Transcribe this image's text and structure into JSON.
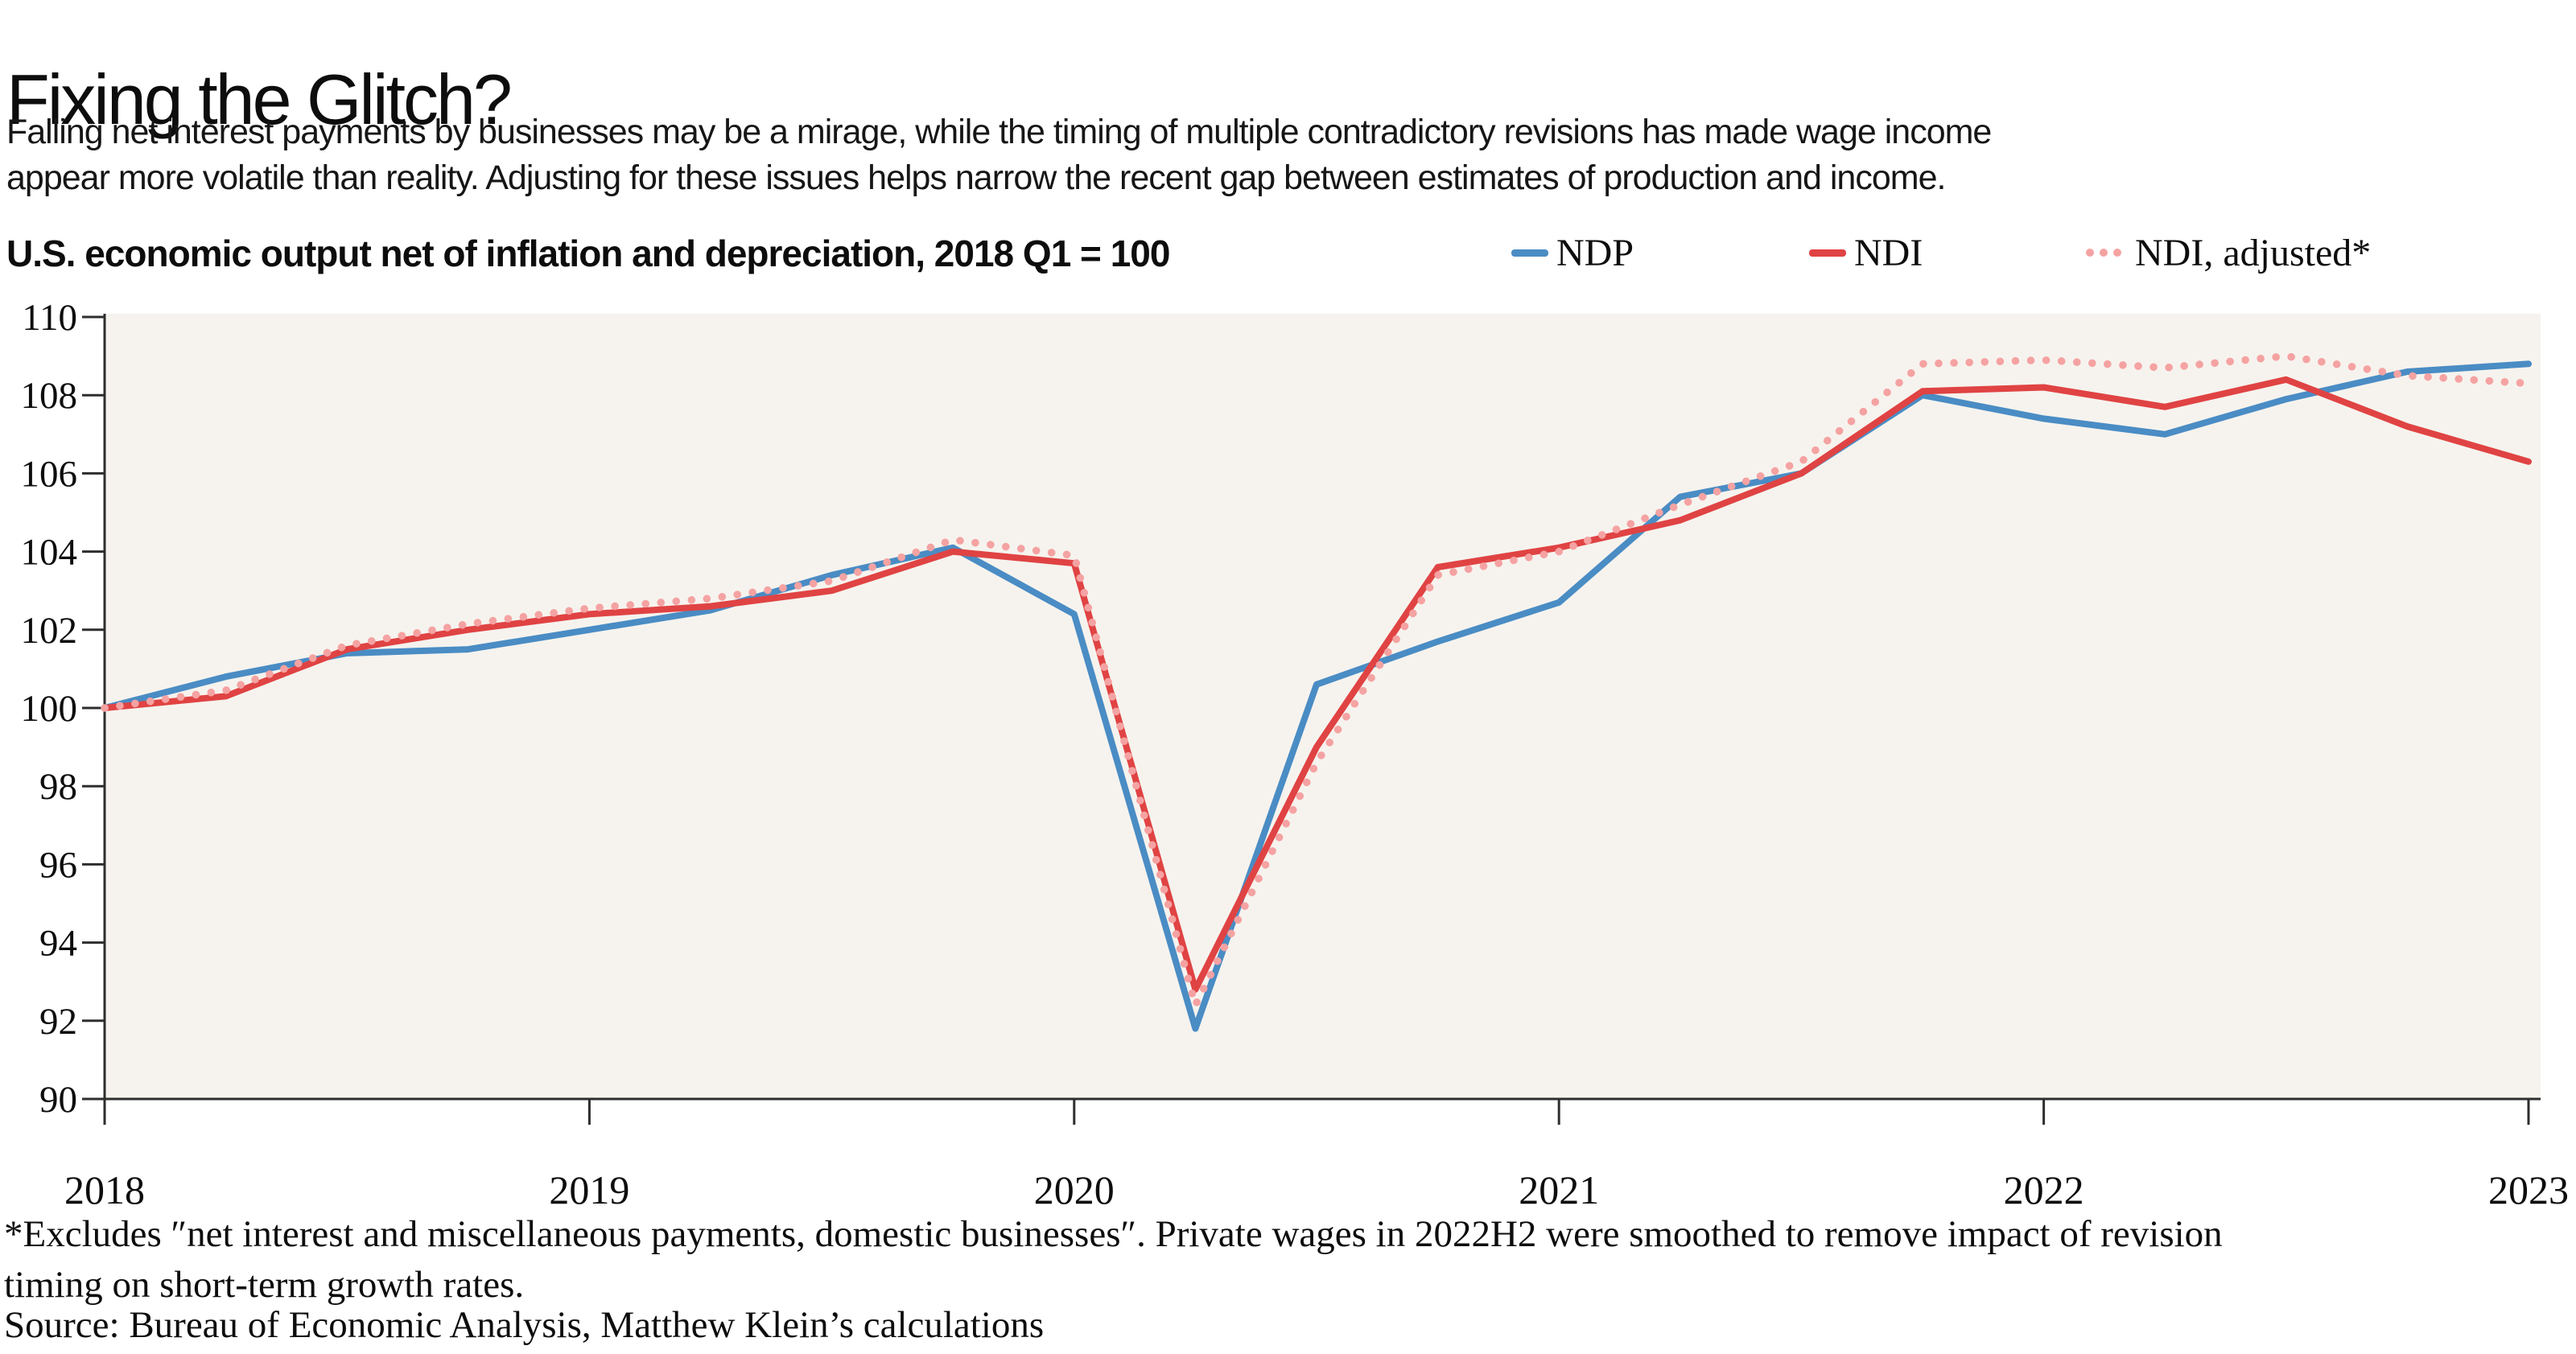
{
  "header": {
    "title": "Fixing the Glitch?",
    "subtitle_lines": [
      "Falling net interest payments by businesses may be a mirage, while the timing of multiple contradictory revisions has made wage income",
      "appear more volatile than reality. Adjusting for these issues helps narrow the recent gap between estimates of production and income."
    ]
  },
  "footer": {
    "footnote_lines": [
      "*Excludes ″net interest and miscellaneous payments, domestic businesses″. Private wages in 2022H2 were smoothed to remove impact of revision",
      "timing on short-term growth rates."
    ],
    "source": "Source: Bureau of Economic Analysis, Matthew Klein’s calculations"
  },
  "chart_data": {
    "type": "line",
    "title": "U.S. economic output net of inflation and depreciation, 2018 Q1 = 100",
    "categories": [
      "2018 Q1",
      "2018 Q2",
      "2018 Q3",
      "2018 Q4",
      "2019 Q1",
      "2019 Q2",
      "2019 Q3",
      "2019 Q4",
      "2020 Q1",
      "2020 Q2",
      "2020 Q3",
      "2020 Q4",
      "2021 Q1",
      "2021 Q2",
      "2021 Q3",
      "2021 Q4",
      "2022 Q1",
      "2022 Q2",
      "2022 Q3",
      "2022 Q4",
      "2023 Q1"
    ],
    "series": [
      {
        "name": "NDP",
        "style": "solid",
        "color": "#4a8cc4",
        "values": [
          100,
          100.8,
          101.4,
          101.5,
          102.0,
          102.5,
          103.4,
          104.1,
          102.4,
          91.8,
          100.6,
          101.7,
          102.7,
          105.4,
          106.0,
          108.0,
          107.4,
          107.0,
          107.9,
          108.6,
          108.8
        ]
      },
      {
        "name": "NDI",
        "style": "solid",
        "color": "#e04343",
        "values": [
          100,
          100.3,
          101.5,
          102.0,
          102.4,
          102.6,
          103.0,
          104.0,
          103.7,
          92.8,
          99.0,
          103.6,
          104.1,
          104.8,
          106.0,
          108.1,
          108.2,
          107.7,
          108.4,
          107.2,
          106.3
        ]
      },
      {
        "name": "NDI, adjusted*",
        "style": "dotted",
        "color": "#f5a2a2",
        "values": [
          100,
          100.45,
          101.6,
          102.15,
          102.55,
          102.8,
          103.25,
          104.3,
          103.9,
          92.4,
          98.6,
          103.4,
          104.0,
          105.2,
          106.3,
          108.8,
          108.9,
          108.7,
          109.0,
          108.5,
          108.3
        ]
      }
    ],
    "xtick_labels": [
      "2018",
      "2019",
      "2020",
      "2021",
      "2022",
      "2023"
    ],
    "ytick_values": [
      90,
      92,
      94,
      96,
      98,
      100,
      102,
      104,
      106,
      108,
      110
    ],
    "xlim": [
      2018,
      2023
    ],
    "ylim": [
      90,
      110
    ],
    "grid": false,
    "legend_position": "top-right",
    "plot_background": "#f6f3ee",
    "axis_color": "#2e2e2e"
  }
}
